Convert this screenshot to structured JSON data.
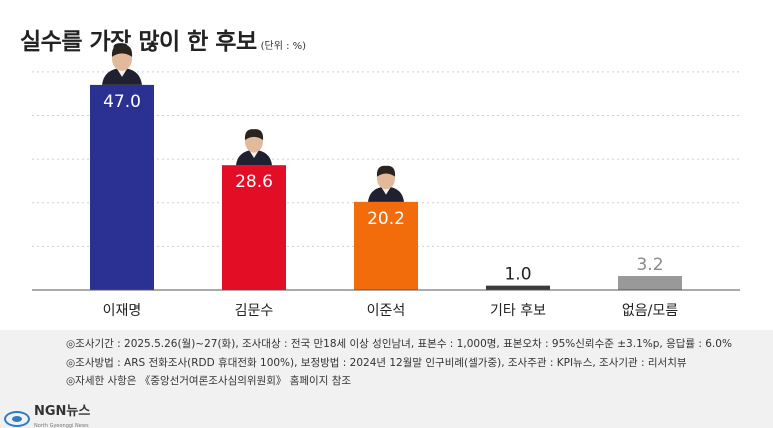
{
  "header": {
    "title": "실수를 가장 많이 한 후보",
    "unit": "(단위 : %)"
  },
  "chart_data": {
    "type": "bar",
    "categories": [
      "이재명",
      "김문수",
      "이준석",
      "기타 후보",
      "없음/모름"
    ],
    "values": [
      47.0,
      28.6,
      20.2,
      1.0,
      3.2
    ],
    "value_labels": [
      "47.0",
      "28.6",
      "20.2",
      "1.0",
      "3.2"
    ],
    "colors": [
      "#2b3192",
      "#e30d25",
      "#f26c0c",
      "#3a3a3a",
      "#999999"
    ],
    "title": "실수를 가장 많이 한 후보",
    "xlabel": "",
    "ylabel": "",
    "ylim": [
      0,
      55
    ],
    "grid": true,
    "candidate_photos": [
      true,
      true,
      true,
      false,
      false
    ]
  },
  "footer": {
    "notes": [
      "◎조사기간 : 2025.5.26(월)~27(화), 조사대상 : 전국 만18세 이상 성인남녀, 표본수 : 1,000명, 표본오차 : 95%신뢰수준 ±3.1%p, 응답률 : 6.0%",
      "◎조사방법 : ARS 전화조사(RDD 휴대전화 100%), 보정방법 : 2024년 12월말 인구비례(셀가중), 조사주관 : KPI뉴스, 조사기관 : 리서치뷰",
      "◎자세한 사항은 《중앙선거여론조사심의위원회》 홈페이지 참조"
    ],
    "logo_text": "NGN뉴스",
    "logo_sub": "North Gyeonggi News"
  }
}
